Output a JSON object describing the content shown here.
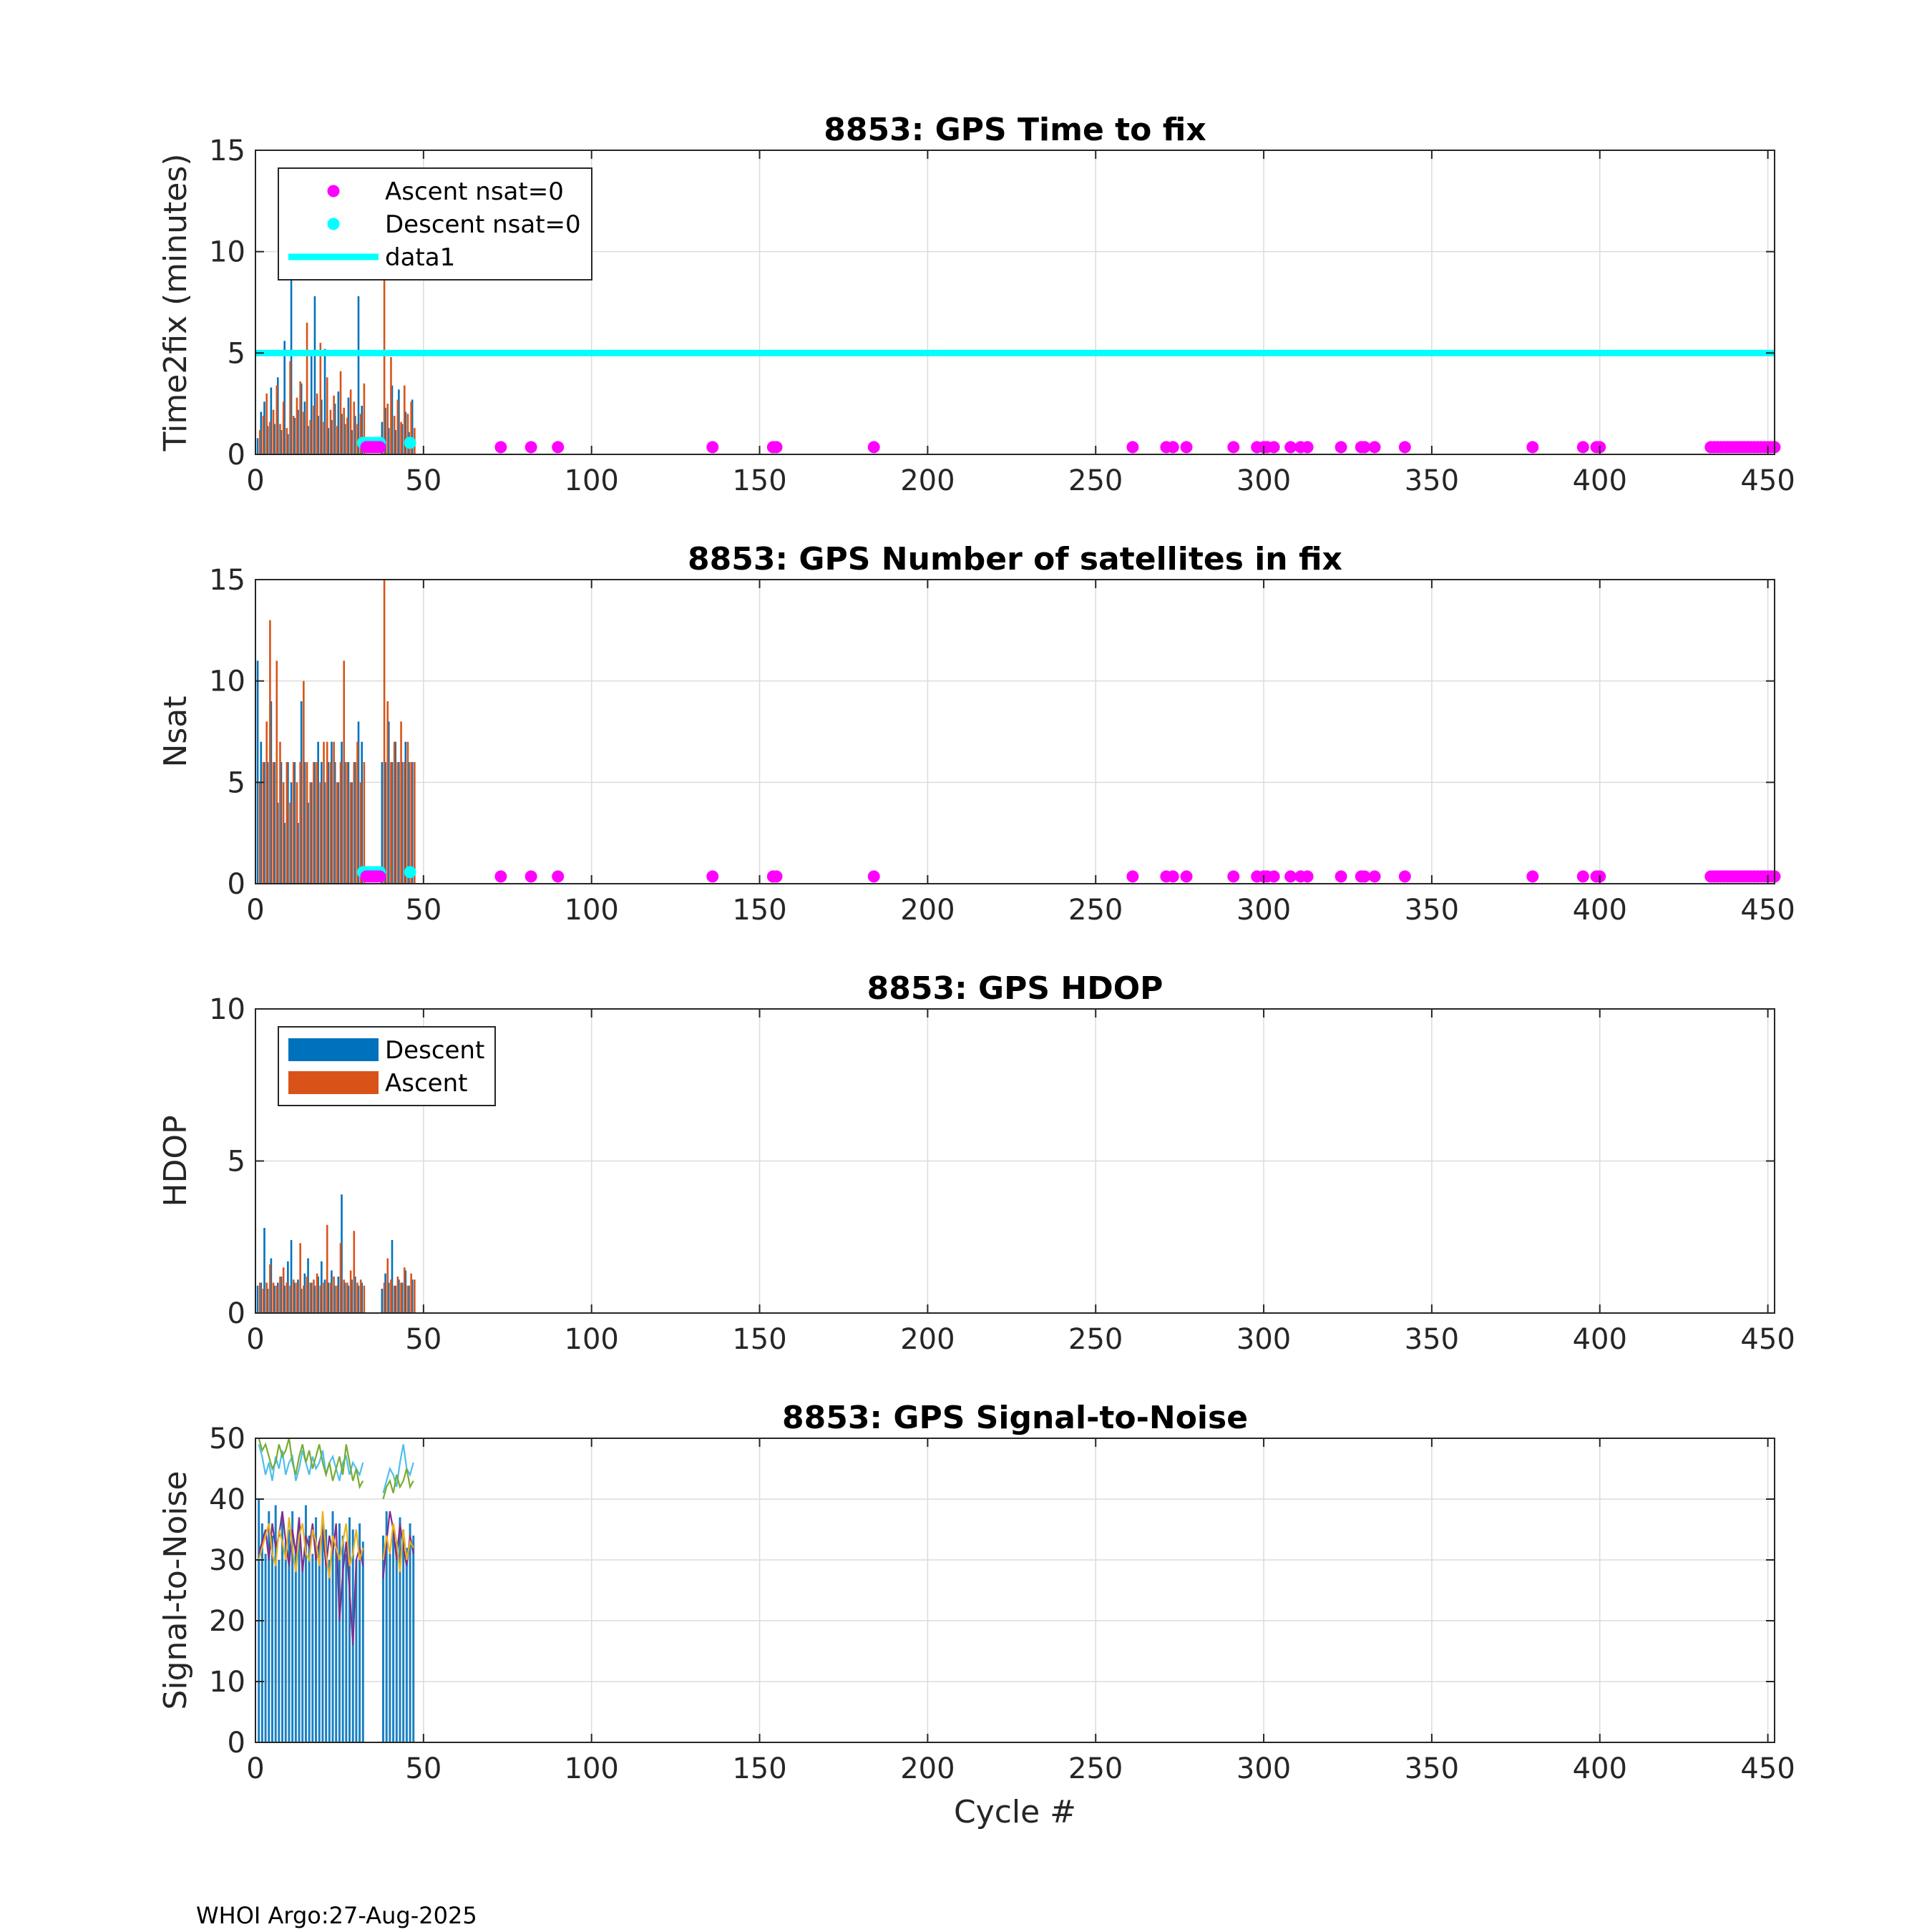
{
  "footer": "WHOI Argo:27-Aug-2025",
  "colors": {
    "descent": "#0072BD",
    "ascent": "#D95319",
    "ascent_nsat0": "#FF00FF",
    "descent_nsat0": "#00FFFF",
    "data1": "#00FFFF",
    "snr": [
      "#4DBEEE",
      "#77AC30",
      "#7E2F8E",
      "#EDB120"
    ]
  },
  "chart_data": [
    {
      "id": "ttf",
      "type": "bar",
      "title": "8853: GPS Time to fix",
      "xlabel": "",
      "ylabel": "Time2fix (minutes)",
      "xlim": [
        0,
        452
      ],
      "ylim": [
        0,
        15
      ],
      "xticks": [
        0,
        50,
        100,
        150,
        200,
        250,
        300,
        350,
        400,
        450
      ],
      "yticks": [
        0,
        5,
        10,
        15
      ],
      "grid": true,
      "legend": {
        "location": "top-left",
        "entries": [
          {
            "label": "Ascent nsat=0",
            "kind": "marker",
            "color": "#FF00FF"
          },
          {
            "label": "Descent nsat=0",
            "kind": "marker",
            "color": "#00FFFF"
          },
          {
            "label": "data1",
            "kind": "line",
            "color": "#00FFFF"
          }
        ]
      },
      "reference_line": {
        "name": "data1",
        "y": 5
      },
      "descent": {
        "cycles": [
          1,
          2,
          3,
          4,
          5,
          6,
          7,
          8,
          9,
          10,
          11,
          12,
          13,
          14,
          15,
          16,
          17,
          18,
          19,
          20,
          21,
          22,
          23,
          24,
          25,
          26,
          27,
          28,
          29,
          30,
          31,
          32,
          38,
          39,
          40,
          41,
          42,
          43,
          44,
          45,
          46,
          47
        ],
        "values": [
          0.8,
          2.1,
          2.6,
          1.4,
          3.3,
          1.5,
          3.8,
          1.2,
          5.6,
          1.0,
          9.4,
          1.8,
          2.2,
          3.5,
          2.6,
          1.4,
          4.9,
          7.8,
          1.9,
          2.7,
          5.2,
          1.3,
          1.7,
          2.5,
          3.1,
          2.0,
          1.5,
          2.8,
          1.2,
          1.9,
          7.8,
          2.4,
          1.6,
          2.3,
          1.3,
          3.4,
          1.2,
          3.2,
          1.5,
          2.1,
          1.1,
          2.7
        ]
      },
      "ascent": {
        "cycles": [
          1,
          2,
          3,
          4,
          5,
          6,
          7,
          8,
          9,
          10,
          11,
          12,
          13,
          14,
          15,
          16,
          17,
          18,
          19,
          20,
          21,
          22,
          23,
          24,
          25,
          26,
          27,
          28,
          29,
          30,
          31,
          32,
          38,
          39,
          40,
          41,
          42,
          43,
          44,
          45,
          46,
          47
        ],
        "values": [
          1.2,
          1.9,
          3.0,
          1.6,
          2.2,
          3.4,
          1.5,
          2.6,
          1.3,
          4.6,
          1.9,
          2.8,
          3.6,
          2.1,
          6.5,
          1.7,
          2.4,
          3.0,
          5.5,
          1.6,
          3.8,
          2.2,
          2.9,
          1.4,
          4.1,
          2.3,
          1.8,
          3.2,
          2.6,
          1.5,
          2.0,
          3.5,
          9.2,
          2.5,
          4.8,
          1.9,
          2.7,
          1.6,
          3.4,
          2.0,
          2.6,
          1.3
        ]
      },
      "ascent_nsat0": {
        "cycles": [
          33,
          34,
          35,
          36,
          37,
          73,
          82,
          90,
          136,
          154,
          155,
          184,
          261,
          271,
          273,
          277,
          291,
          298,
          300,
          301,
          303,
          308,
          311,
          313,
          323,
          329,
          330,
          333,
          342,
          380,
          395,
          399,
          400,
          433,
          434,
          435,
          436,
          437,
          438,
          439,
          440,
          441,
          442,
          443,
          444,
          445,
          446,
          447,
          448,
          449,
          450,
          451,
          452
        ],
        "y": 0.25
      },
      "descent_nsat0": {
        "cycles": [
          32,
          33,
          34,
          35,
          36,
          37,
          46
        ],
        "y": 0.5
      }
    },
    {
      "id": "nsat",
      "type": "bar",
      "title": "8853: GPS Number of satellites in fix",
      "xlabel": "",
      "ylabel": "Nsat",
      "xlim": [
        0,
        452
      ],
      "ylim": [
        0,
        15
      ],
      "xticks": [
        0,
        50,
        100,
        150,
        200,
        250,
        300,
        350,
        400,
        450
      ],
      "yticks": [
        0,
        5,
        10,
        15
      ],
      "grid": true,
      "descent": {
        "cycles": [
          1,
          2,
          3,
          4,
          5,
          6,
          7,
          8,
          9,
          10,
          11,
          12,
          13,
          14,
          15,
          16,
          17,
          18,
          19,
          20,
          21,
          22,
          23,
          24,
          25,
          26,
          27,
          28,
          29,
          30,
          31,
          32,
          38,
          39,
          40,
          41,
          42,
          43,
          44,
          45,
          46,
          47
        ],
        "values": [
          11,
          7,
          6,
          6,
          9,
          6,
          4,
          6,
          3,
          6,
          5,
          6,
          3,
          9,
          6,
          4,
          5,
          6,
          7,
          6,
          5,
          6,
          7,
          6,
          5,
          7,
          6,
          6,
          5,
          6,
          8,
          7,
          6,
          6,
          8,
          6,
          7,
          6,
          6,
          7,
          6,
          6
        ]
      },
      "ascent": {
        "cycles": [
          1,
          2,
          3,
          4,
          5,
          6,
          7,
          8,
          9,
          10,
          11,
          12,
          13,
          14,
          15,
          16,
          17,
          18,
          19,
          20,
          21,
          22,
          23,
          24,
          25,
          26,
          27,
          28,
          29,
          30,
          31,
          32,
          38,
          39,
          40,
          41,
          42,
          43,
          44,
          45,
          46,
          47
        ],
        "values": [
          5,
          6,
          8,
          13,
          6,
          11,
          7,
          5,
          6,
          4,
          6,
          5,
          6,
          10,
          6,
          5,
          6,
          6,
          5,
          7,
          7,
          6,
          7,
          5,
          6,
          11,
          6,
          5,
          6,
          7,
          5,
          6,
          15,
          9,
          6,
          7,
          6,
          8,
          6,
          7,
          6,
          6
        ]
      },
      "ascent_nsat0": {
        "cycles": [
          33,
          34,
          35,
          36,
          37,
          73,
          82,
          90,
          136,
          154,
          155,
          184,
          261,
          271,
          273,
          277,
          291,
          298,
          300,
          301,
          303,
          308,
          311,
          313,
          323,
          329,
          330,
          333,
          342,
          380,
          395,
          399,
          400,
          433,
          434,
          435,
          436,
          437,
          438,
          439,
          440,
          441,
          442,
          443,
          444,
          445,
          446,
          447,
          448,
          449,
          450,
          451,
          452
        ],
        "y": 0.25
      },
      "descent_nsat0": {
        "cycles": [
          32,
          33,
          34,
          35,
          36,
          37,
          46
        ],
        "y": 0.5
      }
    },
    {
      "id": "hdop",
      "type": "bar",
      "title": "8853: GPS HDOP",
      "xlabel": "",
      "ylabel": "HDOP",
      "xlim": [
        0,
        452
      ],
      "ylim": [
        0,
        10
      ],
      "xticks": [
        0,
        50,
        100,
        150,
        200,
        250,
        300,
        350,
        400,
        450
      ],
      "yticks": [
        0,
        5,
        10
      ],
      "grid": true,
      "legend": {
        "location": "top-left",
        "entries": [
          {
            "label": "Descent",
            "kind": "patch",
            "color": "#0072BD"
          },
          {
            "label": "Ascent",
            "kind": "patch",
            "color": "#D95319"
          }
        ]
      },
      "descent": {
        "cycles": [
          1,
          2,
          3,
          4,
          5,
          6,
          7,
          8,
          9,
          10,
          11,
          12,
          13,
          14,
          15,
          16,
          17,
          18,
          19,
          20,
          21,
          22,
          23,
          24,
          25,
          26,
          27,
          28,
          29,
          30,
          31,
          32,
          38,
          39,
          40,
          41,
          42,
          43,
          44,
          45,
          46,
          47
        ],
        "values": [
          0.9,
          1.0,
          2.8,
          0.8,
          1.8,
          0.9,
          1.0,
          1.2,
          0.9,
          1.7,
          2.4,
          1.0,
          1.1,
          0.8,
          1.3,
          1.8,
          1.0,
          0.9,
          1.2,
          1.7,
          1.1,
          1.0,
          1.4,
          0.9,
          1.2,
          3.9,
          1.0,
          0.9,
          1.1,
          1.2,
          0.9,
          1.0,
          0.8,
          1.3,
          1.0,
          2.4,
          0.9,
          1.1,
          1.0,
          1.4,
          0.9,
          1.1
        ]
      },
      "ascent": {
        "cycles": [
          1,
          2,
          3,
          4,
          5,
          6,
          7,
          8,
          9,
          10,
          11,
          12,
          13,
          14,
          15,
          16,
          17,
          18,
          19,
          20,
          21,
          22,
          23,
          24,
          25,
          26,
          27,
          28,
          29,
          30,
          31,
          32,
          38,
          39,
          40,
          41,
          42,
          43,
          44,
          45,
          46,
          47
        ],
        "values": [
          1.0,
          0.8,
          1.0,
          1.6,
          1.0,
          0.9,
          1.2,
          1.5,
          1.0,
          0.9,
          1.1,
          1.0,
          2.3,
          0.9,
          1.2,
          1.0,
          1.1,
          1.3,
          0.9,
          1.0,
          2.9,
          1.0,
          1.2,
          0.9,
          2.3,
          1.1,
          1.0,
          1.4,
          2.7,
          1.0,
          1.1,
          0.9,
          1.0,
          1.8,
          1.1,
          0.9,
          1.2,
          1.0,
          1.5,
          0.9,
          1.3,
          1.1
        ]
      }
    },
    {
      "id": "snr",
      "type": "line",
      "title": "8853: GPS Signal-to-Noise",
      "xlabel": "Cycle #",
      "ylabel": "Signal-to-Noise",
      "xlim": [
        0,
        452
      ],
      "ylim": [
        0,
        50
      ],
      "xticks": [
        0,
        50,
        100,
        150,
        200,
        250,
        300,
        350,
        400,
        450
      ],
      "yticks": [
        0,
        10,
        20,
        30,
        40,
        50
      ],
      "grid": true,
      "bars": {
        "cycles": [
          1,
          2,
          3,
          4,
          5,
          6,
          7,
          8,
          9,
          10,
          11,
          12,
          13,
          14,
          15,
          16,
          17,
          18,
          19,
          20,
          21,
          22,
          23,
          24,
          25,
          26,
          27,
          28,
          29,
          30,
          31,
          32,
          38,
          39,
          40,
          41,
          42,
          43,
          44,
          45,
          46,
          47
        ],
        "values": [
          40,
          36,
          31,
          38,
          34,
          39,
          30,
          37,
          33,
          35,
          38,
          32,
          36,
          30,
          39,
          34,
          31,
          37,
          33,
          36,
          35,
          30,
          38,
          32,
          36,
          34,
          31,
          37,
          35,
          30,
          36,
          33,
          34,
          38,
          31,
          36,
          33,
          37,
          35,
          32,
          36,
          34
        ]
      },
      "series": [
        {
          "name": "s1",
          "x": [
            1,
            2,
            3,
            4,
            5,
            6,
            7,
            8,
            9,
            10,
            11,
            12,
            13,
            14,
            15,
            16,
            17,
            18,
            19,
            20,
            21,
            22,
            23,
            24,
            25,
            26,
            27,
            28,
            29,
            30,
            31,
            32,
            38,
            39,
            40,
            41,
            42,
            43,
            44,
            45,
            46,
            47
          ],
          "values": [
            49,
            47,
            44,
            46,
            43,
            47,
            45,
            48,
            44,
            46,
            47,
            43,
            45,
            48,
            46,
            44,
            47,
            45,
            46,
            48,
            44,
            46,
            47,
            45,
            43,
            46,
            47,
            44,
            46,
            45,
            44,
            46,
            41,
            43,
            45,
            44,
            42,
            46,
            49,
            45,
            44,
            46
          ]
        },
        {
          "name": "s2",
          "x": [
            1,
            2,
            3,
            4,
            5,
            6,
            7,
            8,
            9,
            10,
            11,
            12,
            13,
            14,
            15,
            16,
            17,
            18,
            19,
            20,
            21,
            22,
            23,
            24,
            25,
            26,
            27,
            28,
            29,
            30,
            31,
            32,
            38,
            39,
            40,
            41,
            42,
            43,
            44,
            45,
            46,
            47
          ],
          "values": [
            50,
            48,
            49,
            47,
            45,
            46,
            49,
            47,
            48,
            50,
            46,
            44,
            47,
            49,
            46,
            48,
            45,
            47,
            49,
            46,
            44,
            46,
            43,
            45,
            47,
            44,
            49,
            46,
            43,
            45,
            42,
            43,
            40,
            42,
            43,
            41,
            44,
            42,
            43,
            45,
            42,
            43
          ]
        },
        {
          "name": "s3",
          "x": [
            1,
            2,
            3,
            4,
            5,
            6,
            7,
            8,
            9,
            10,
            11,
            12,
            13,
            14,
            15,
            16,
            17,
            18,
            19,
            20,
            21,
            22,
            23,
            24,
            25,
            26,
            27,
            28,
            29,
            30,
            31,
            32,
            38,
            39,
            40,
            41,
            42,
            43,
            44,
            45,
            46,
            47
          ],
          "values": [
            31,
            33,
            35,
            30,
            36,
            32,
            34,
            38,
            33,
            29,
            35,
            31,
            37,
            28,
            34,
            32,
            36,
            30,
            33,
            35,
            29,
            34,
            31,
            36,
            20,
            28,
            33,
            25,
            16,
            30,
            32,
            29,
            27,
            33,
            38,
            35,
            30,
            36,
            32,
            29,
            34,
            31
          ]
        },
        {
          "name": "s4",
          "x": [
            1,
            2,
            3,
            4,
            5,
            6,
            7,
            8,
            9,
            10,
            11,
            12,
            13,
            14,
            15,
            16,
            17,
            18,
            19,
            20,
            21,
            22,
            23,
            24,
            25,
            26,
            27,
            28,
            29,
            30,
            31,
            32,
            38,
            39,
            40,
            41,
            42,
            43,
            44,
            45,
            46,
            47
          ],
          "values": [
            30,
            32,
            34,
            36,
            31,
            29,
            35,
            33,
            30,
            37,
            32,
            28,
            34,
            36,
            31,
            30,
            35,
            33,
            29,
            38,
            31,
            27,
            34,
            32,
            30,
            33,
            36,
            29,
            31,
            35,
            30,
            32,
            30,
            34,
            31,
            36,
            33,
            28,
            35,
            30,
            33,
            32
          ]
        }
      ]
    }
  ]
}
